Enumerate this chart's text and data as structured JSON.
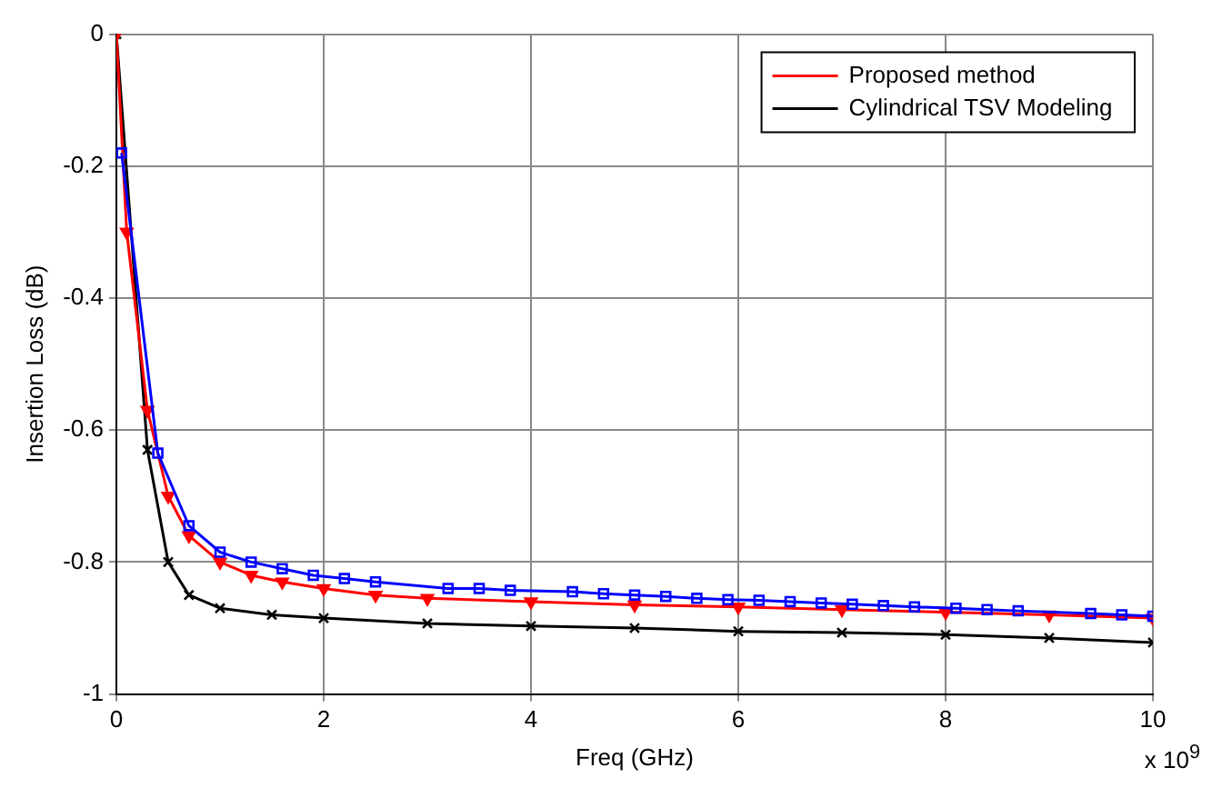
{
  "chart_data": {
    "type": "line",
    "xlabel": "Freq (GHz)",
    "ylabel": "Insertion Loss (dB)",
    "xlim": [
      0,
      10
    ],
    "xticks": [
      0,
      2,
      4,
      6,
      8,
      10
    ],
    "ylim": [
      -1,
      0
    ],
    "yticks": [
      -1,
      -0.8,
      -0.6,
      -0.4,
      -0.2,
      0
    ],
    "grid": true,
    "legend": "top right",
    "annotations": [
      "x 10$^{9}$"
    ],
    "series": [
      {
        "color": "#0000ff",
        "marker": "square",
        "x": [
          0.05,
          0.4,
          0.7,
          1.0,
          1.3,
          1.6,
          1.9,
          2.2,
          2.5,
          3.2,
          3.5,
          3.8,
          4.4,
          4.7,
          5.0,
          5.3,
          5.6,
          5.9,
          6.2,
          6.5,
          6.8,
          7.1,
          7.4,
          7.7,
          8.1,
          8.4,
          8.7,
          9.4,
          9.7,
          10
        ],
        "values": [
          -0.18,
          -0.635,
          -0.745,
          -0.785,
          -0.8,
          -0.81,
          -0.82,
          -0.825,
          -0.83,
          -0.84,
          -0.84,
          -0.843,
          -0.845,
          -0.848,
          -0.85,
          -0.852,
          -0.855,
          -0.857,
          -0.858,
          -0.86,
          -0.862,
          -0.864,
          -0.866,
          -0.868,
          -0.87,
          -0.872,
          -0.874,
          -0.878,
          -0.88,
          -0.882
        ]
      },
      {
        "name": "Proposed method",
        "color": "#ff0000",
        "marker": "triangle",
        "x": [
          0,
          0.1,
          0.3,
          0.5,
          0.7,
          1,
          1.3,
          1.6,
          2,
          2.5,
          3,
          4,
          5,
          6,
          7,
          8,
          9,
          10
        ],
        "values": [
          0,
          -0.3,
          -0.57,
          -0.7,
          -0.76,
          -0.8,
          -0.82,
          -0.83,
          -0.84,
          -0.85,
          -0.855,
          -0.86,
          -0.865,
          -0.868,
          -0.872,
          -0.876,
          -0.88,
          -0.885
        ]
      },
      {
        "name": "Cylindrical TSV Modeling",
        "color": "#000000",
        "marker": "cross",
        "x": [
          0,
          0.3,
          0.5,
          0.7,
          1,
          1.5,
          2,
          3,
          4,
          5,
          6,
          7,
          8,
          9,
          10
        ],
        "values": [
          0,
          -0.63,
          -0.8,
          -0.85,
          -0.87,
          -0.88,
          -0.885,
          -0.893,
          -0.897,
          -0.9,
          -0.905,
          -0.907,
          -0.91,
          -0.915,
          -0.922
        ]
      }
    ]
  }
}
